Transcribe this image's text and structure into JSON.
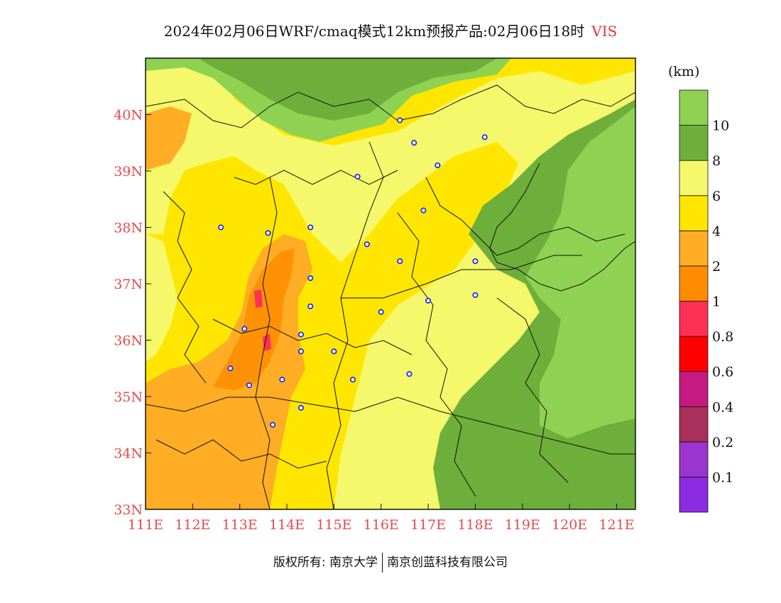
{
  "header": {
    "title": "2024年02月06日WRF/cmaq模式12km预报产品:02月06日18时",
    "variable": "VIS"
  },
  "colorbar": {
    "unit": "(km)",
    "colors": [
      "#8b2be2",
      "#9b35d0",
      "#a8305a",
      "#c51a82",
      "#ff0000",
      "#ff3055",
      "#ff8c00",
      "#ffad24",
      "#ffe600",
      "#f4f86a",
      "#6eae3a",
      "#8fd151"
    ],
    "labels": [
      "0.1",
      "0.2",
      "0.4",
      "0.6",
      "0.8",
      "1",
      "2",
      "4",
      "6",
      "8",
      "10"
    ]
  },
  "map": {
    "lon_range": [
      111,
      121.4
    ],
    "lat_range": [
      33,
      41
    ],
    "x_ticks": [
      "111E",
      "112E",
      "113E",
      "114E",
      "115E",
      "116E",
      "117E",
      "118E",
      "119E",
      "120E",
      "121E"
    ],
    "y_ticks": [
      "33N",
      "34N",
      "35N",
      "36N",
      "37N",
      "38N",
      "39N",
      "40N"
    ],
    "stations": [
      [
        116.4,
        39.9
      ],
      [
        116.7,
        39.5
      ],
      [
        118.2,
        39.6
      ],
      [
        117.2,
        39.1
      ],
      [
        114.5,
        38.0
      ],
      [
        113.6,
        37.9
      ],
      [
        112.6,
        38.0
      ],
      [
        115.7,
        37.7
      ],
      [
        116.4,
        37.4
      ],
      [
        114.5,
        37.1
      ],
      [
        114.5,
        36.6
      ],
      [
        114.3,
        36.1
      ],
      [
        113.1,
        36.2
      ],
      [
        112.8,
        35.5
      ],
      [
        113.2,
        35.2
      ],
      [
        113.9,
        35.3
      ],
      [
        114.3,
        35.8
      ],
      [
        115.0,
        35.8
      ],
      [
        115.4,
        35.3
      ],
      [
        116.6,
        35.4
      ],
      [
        114.3,
        34.8
      ],
      [
        113.7,
        34.5
      ],
      [
        117.0,
        36.7
      ],
      [
        118.0,
        36.8
      ],
      [
        118.0,
        37.4
      ],
      [
        116.0,
        36.5
      ],
      [
        115.5,
        38.9
      ],
      [
        116.9,
        38.3
      ]
    ]
  },
  "footer": {
    "left": "版权所有: 南京大学",
    "right": "南京创蓝科技有限公司"
  }
}
